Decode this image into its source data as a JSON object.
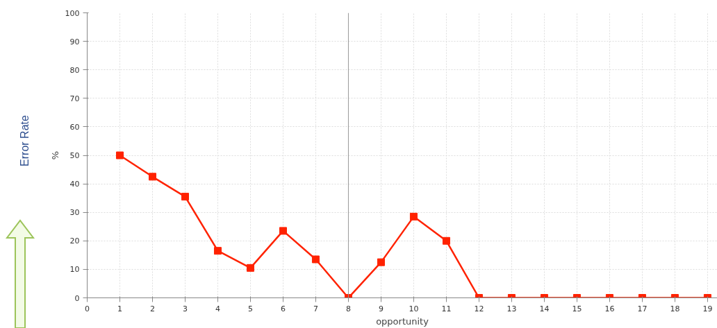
{
  "chart_data": {
    "type": "line",
    "xlabel": "opportunity",
    "ylabel": "%",
    "annotations": [
      "Error Rate"
    ],
    "x": [
      1,
      2,
      3,
      4,
      5,
      6,
      7,
      8,
      9,
      10,
      11,
      12,
      13,
      14,
      15,
      16,
      17,
      18,
      19
    ],
    "series": [
      {
        "color": "#ff2200",
        "values": [
          50,
          42.5,
          35.5,
          16.5,
          10.5,
          23.5,
          13.5,
          0,
          12.5,
          28.5,
          20,
          0,
          0,
          0,
          0,
          0,
          0,
          0,
          0
        ]
      }
    ],
    "xlim": [
      0,
      19.3
    ],
    "xticks": [
      0,
      1,
      2,
      3,
      4,
      5,
      6,
      7,
      8,
      9,
      10,
      11,
      12,
      13,
      14,
      15,
      16,
      17,
      18,
      19
    ],
    "ylim": [
      0,
      100
    ],
    "yticks": [
      0,
      10,
      20,
      30,
      40,
      50,
      60,
      70,
      80,
      90,
      100
    ],
    "ref_lines": [
      {
        "axis": "x",
        "value": 8,
        "color": "#999999"
      }
    ],
    "grid": true,
    "marker": "square",
    "line_style": "solid"
  }
}
